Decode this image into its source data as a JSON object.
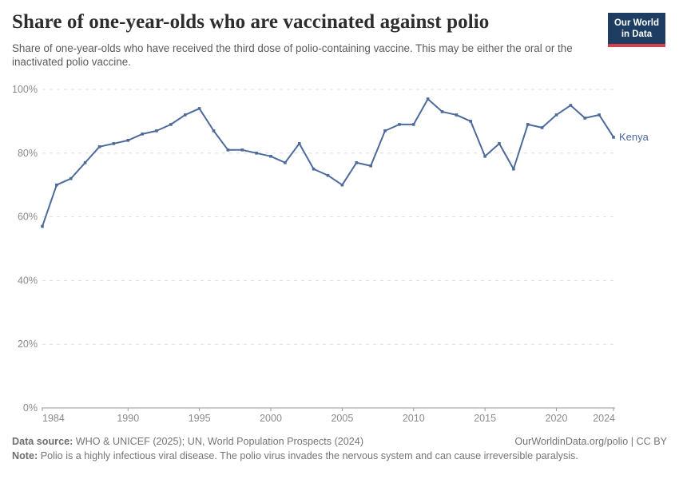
{
  "header": {
    "title": "Share of one-year-olds who are vaccinated against polio",
    "subtitle": "Share of one-year-olds who have received the third dose of polio-containing vaccine. This may be either the oral or the inactivated polio vaccine.",
    "logo": {
      "line1": "Our World",
      "line2": "in Data",
      "bg_color": "#1d3d63",
      "accent_color": "#d8404a"
    }
  },
  "chart_data": {
    "type": "line",
    "title": "Share of one-year-olds who are vaccinated against polio",
    "x": [
      1984,
      1985,
      1986,
      1987,
      1988,
      1989,
      1990,
      1991,
      1992,
      1993,
      1994,
      1995,
      1996,
      1997,
      1998,
      1999,
      2000,
      2001,
      2002,
      2003,
      2004,
      2005,
      2006,
      2007,
      2008,
      2009,
      2010,
      2011,
      2012,
      2013,
      2014,
      2015,
      2016,
      2017,
      2018,
      2019,
      2020,
      2021,
      2022,
      2023,
      2024
    ],
    "series": [
      {
        "name": "Kenya",
        "color": "#4c6a9c",
        "values": [
          57,
          70,
          72,
          77,
          82,
          83,
          84,
          86,
          87,
          89,
          92,
          94,
          87,
          81,
          81,
          80,
          79,
          77,
          83,
          75,
          73,
          70,
          77,
          76,
          87,
          89,
          89,
          97,
          93,
          92,
          90,
          79,
          83,
          75,
          89,
          88,
          92,
          95,
          91,
          92,
          85
        ]
      }
    ],
    "xlim": [
      1984,
      2024
    ],
    "ylim": [
      0,
      100
    ],
    "xticks": [
      {
        "value": 1984,
        "label": "1984"
      },
      {
        "value": 1990,
        "label": "1990"
      },
      {
        "value": 1995,
        "label": "1995"
      },
      {
        "value": 2000,
        "label": "2000"
      },
      {
        "value": 2005,
        "label": "2005"
      },
      {
        "value": 2010,
        "label": "2010"
      },
      {
        "value": 2015,
        "label": "2015"
      },
      {
        "value": 2020,
        "label": "2020"
      },
      {
        "value": 2024,
        "label": "2024"
      }
    ],
    "yticks": [
      {
        "value": 0,
        "label": "0%"
      },
      {
        "value": 20,
        "label": "20%"
      },
      {
        "value": 40,
        "label": "40%"
      },
      {
        "value": 60,
        "label": "60%"
      },
      {
        "value": 80,
        "label": "80%"
      },
      {
        "value": 100,
        "label": "100%"
      }
    ],
    "grid": "horizontal-dashed",
    "legend_position": "end-of-line-label"
  },
  "footer": {
    "datasource_label": "Data source:",
    "datasource_text": "WHO & UNICEF (2025); UN, World Population Prospects (2024)",
    "link_text": "OurWorldinData.org/polio | CC BY",
    "note_label": "Note:",
    "note_text": "Polio is a highly infectious viral disease. The polio virus invades the nervous system and can cause irreversible paralysis."
  }
}
